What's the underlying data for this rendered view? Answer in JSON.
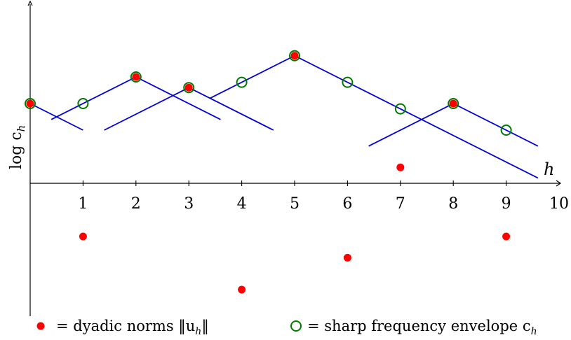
{
  "chart_data": {
    "type": "scatter",
    "xlabel": "h",
    "ylabel": "log c_h",
    "ylabel_main": "log c",
    "ylabel_sub": "h",
    "xlabel_main": "h",
    "x_ticks": [
      "1",
      "2",
      "3",
      "4",
      "5",
      "6",
      "7",
      "8",
      "9",
      "10"
    ],
    "xlim": [
      0,
      10
    ],
    "ylim": [
      -2.5,
      3.4
    ],
    "line_slope": 0.5,
    "grid": false,
    "legend_position": "bottom",
    "colors": {
      "dyadic_norms": "#ff0000",
      "envelope": "#007a00",
      "tents": "#0000dd",
      "axes": "#000000"
    },
    "series": [
      {
        "key": "dyadic_norms",
        "marker": "filled-circle",
        "x": [
          0,
          1,
          2,
          3,
          4,
          5,
          6,
          7,
          8,
          9
        ],
        "y": [
          1.5,
          -1.0,
          2.0,
          1.8,
          -2.0,
          2.4,
          -1.4,
          0.3,
          1.5,
          -1.0
        ]
      },
      {
        "key": "envelope",
        "marker": "open-circle",
        "x": [
          0,
          1,
          2,
          3,
          4,
          5,
          6,
          7,
          8,
          9
        ],
        "y": [
          1.5,
          1.5,
          2.0,
          1.8,
          1.9,
          2.4,
          1.9,
          1.4,
          1.5,
          1.0
        ]
      }
    ],
    "tents": [
      {
        "peak_x": 0,
        "peak_y": 1.5,
        "x_from": 0,
        "x_to": 1
      },
      {
        "peak_x": 2,
        "peak_y": 2.0,
        "x_from": 0.4,
        "x_to": 3.6
      },
      {
        "peak_x": 3,
        "peak_y": 1.8,
        "x_from": 1.4,
        "x_to": 4.6
      },
      {
        "peak_x": 5,
        "peak_y": 2.4,
        "x_from": 3.4,
        "x_to": 9.6
      },
      {
        "peak_x": 8,
        "peak_y": 1.5,
        "x_from": 6.4,
        "x_to": 9.6
      }
    ],
    "legend": {
      "dyadic_norms_text": "= dyadic norms ‖u",
      "dyadic_norms_sub": "h",
      "dyadic_norms_tail": "‖",
      "envelope_text": "= sharp frequency envelope c",
      "envelope_sub": "h"
    }
  }
}
